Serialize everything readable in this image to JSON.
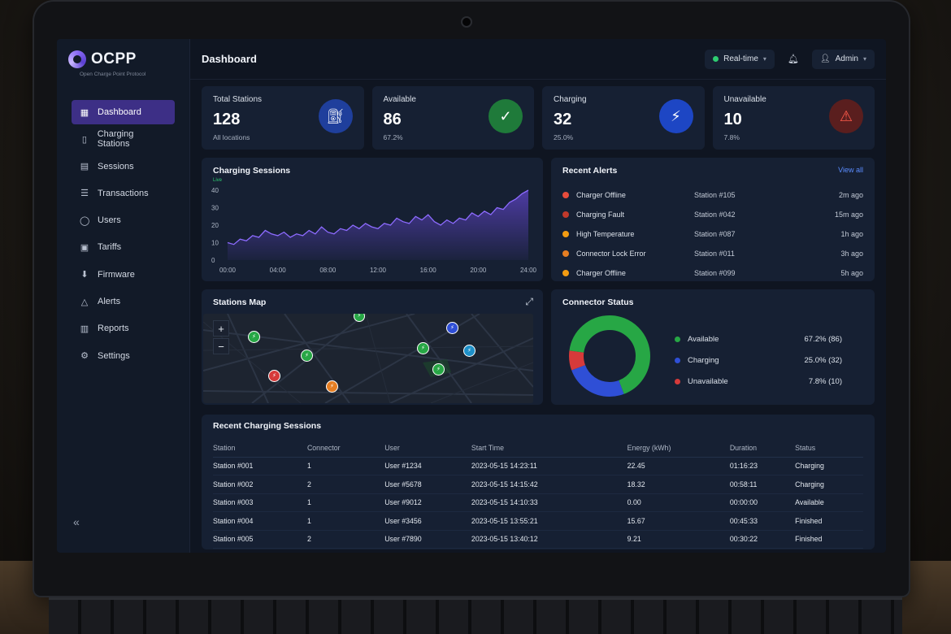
{
  "brand": {
    "name": "OCPP",
    "subtitle": "Open Charge Point Protocol"
  },
  "sidebar": {
    "items": [
      {
        "label": "Dashboard",
        "icon": "grid-icon",
        "active": true
      },
      {
        "label": "Charging Stations",
        "icon": "station-icon"
      },
      {
        "label": "Sessions",
        "icon": "calendar-icon"
      },
      {
        "label": "Transactions",
        "icon": "list-icon"
      },
      {
        "label": "Users",
        "icon": "user-icon"
      },
      {
        "label": "Tariffs",
        "icon": "tariff-icon"
      },
      {
        "label": "Firmware",
        "icon": "firmware-icon"
      },
      {
        "label": "Alerts",
        "icon": "warning-icon"
      },
      {
        "label": "Reports",
        "icon": "report-icon"
      },
      {
        "label": "Settings",
        "icon": "gear-icon"
      }
    ],
    "collapse_label": "«"
  },
  "header": {
    "title": "Dashboard",
    "realtime_label": "Real-time",
    "user_label": "Admin"
  },
  "stats": [
    {
      "label": "Total Stations",
      "value": "128",
      "sub": "All locations",
      "icon": "fuel-pump-icon",
      "color": "#1f3f9c"
    },
    {
      "label": "Available",
      "value": "86",
      "sub": "67.2%",
      "icon": "check-icon",
      "color": "#1f7a3a"
    },
    {
      "label": "Charging",
      "value": "32",
      "sub": "25.0%",
      "icon": "bolt-icon",
      "color": "#1d46c4"
    },
    {
      "label": "Unavailable",
      "value": "10",
      "sub": "7.8%",
      "icon": "alert-triangle-icon",
      "color": "#5a1e1e"
    }
  ],
  "sessions_chart": {
    "title": "Charging Sessions",
    "live_label": "Live"
  },
  "chart_data": {
    "type": "area",
    "title": "Charging Sessions",
    "x_ticks": [
      "00:00",
      "04:00",
      "08:00",
      "12:00",
      "16:00",
      "20:00",
      "24:00"
    ],
    "y_ticks": [
      0,
      10,
      20,
      30,
      40
    ],
    "ylim": [
      0,
      40
    ],
    "xlim": [
      0,
      24
    ],
    "x": [
      0,
      0.5,
      1,
      1.5,
      2,
      2.5,
      3,
      3.5,
      4,
      4.5,
      5,
      5.5,
      6,
      6.5,
      7,
      7.5,
      8,
      8.5,
      9,
      9.5,
      10,
      10.5,
      11,
      11.5,
      12,
      12.5,
      13,
      13.5,
      14,
      14.5,
      15,
      15.5,
      16,
      16.5,
      17,
      17.5,
      18,
      18.5,
      19,
      19.5,
      20,
      20.5,
      21,
      21.5,
      22,
      22.5,
      23,
      23.5,
      24
    ],
    "values": [
      10,
      9,
      12,
      11,
      14,
      13,
      17,
      15,
      14,
      16,
      13,
      15,
      14,
      17,
      15,
      19,
      16,
      15,
      18,
      17,
      20,
      18,
      21,
      19,
      18,
      21,
      20,
      24,
      22,
      21,
      25,
      23,
      26,
      22,
      20,
      23,
      21,
      24,
      23,
      27,
      25,
      28,
      26,
      30,
      29,
      33,
      35,
      38,
      40
    ],
    "grid": false,
    "legend": "none"
  },
  "alerts": {
    "title": "Recent Alerts",
    "view_all": "View all",
    "items": [
      {
        "name": "Charger Offline",
        "station": "Station #105",
        "time": "2m ago",
        "color": "#e74c3c"
      },
      {
        "name": "Charging Fault",
        "station": "Station #042",
        "time": "15m ago",
        "color": "#c0392b"
      },
      {
        "name": "High Temperature",
        "station": "Station #087",
        "time": "1h ago",
        "color": "#f39c12"
      },
      {
        "name": "Connector Lock Error",
        "station": "Station #011",
        "time": "3h ago",
        "color": "#e67e22"
      },
      {
        "name": "Charger Offline",
        "station": "Station #099",
        "time": "5h ago",
        "color": "#f39c12"
      }
    ]
  },
  "map": {
    "title": "Stations Map",
    "zoom_in": "+",
    "zoom_out": "−"
  },
  "connector_status": {
    "title": "Connector Status",
    "items": [
      {
        "label": "Available",
        "value": "67.2% (86)",
        "percent": 67.2,
        "color": "#27a745"
      },
      {
        "label": "Charging",
        "value": "25.0% (32)",
        "percent": 25.0,
        "color": "#2f4fd6"
      },
      {
        "label": "Unavailable",
        "value": "7.8% (10)",
        "percent": 7.8,
        "color": "#d63a3a"
      }
    ]
  },
  "sessions_table": {
    "title": "Recent Charging Sessions",
    "columns": [
      "Station",
      "Connector",
      "User",
      "Start Time",
      "Energy (kWh)",
      "Duration",
      "Status"
    ],
    "rows": [
      [
        "Station #001",
        "1",
        "User #1234",
        "2023-05-15 14:23:11",
        "22.45",
        "01:16:23",
        "Charging"
      ],
      [
        "Station #002",
        "2",
        "User #5678",
        "2023-05-15 14:15:42",
        "18.32",
        "00:58:11",
        "Charging"
      ],
      [
        "Station #003",
        "1",
        "User #9012",
        "2023-05-15 14:10:33",
        "0.00",
        "00:00:00",
        "Available"
      ],
      [
        "Station #004",
        "1",
        "User #3456",
        "2023-05-15 13:55:21",
        "15.67",
        "00:45:33",
        "Finished"
      ],
      [
        "Station #005",
        "2",
        "User #7890",
        "2023-05-15 13:40:12",
        "9.21",
        "00:30:22",
        "Finished"
      ]
    ]
  }
}
